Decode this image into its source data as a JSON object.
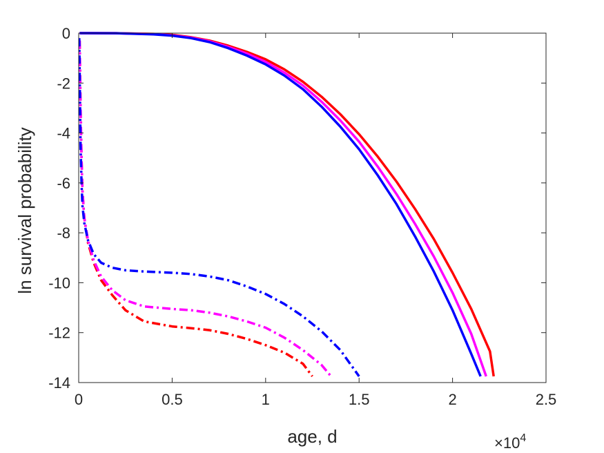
{
  "chart_data": {
    "type": "line",
    "title": "",
    "xlabel": "age, d",
    "ylabel": "ln survival probability",
    "x_exponent_label": {
      "base": "×10",
      "exponent": "4"
    },
    "xlim": [
      0,
      2.5
    ],
    "ylim": [
      -14,
      0
    ],
    "x_scale_factor": 10000,
    "xticks": [
      0,
      0.5,
      1,
      1.5,
      2,
      2.5
    ],
    "xtick_labels": [
      "0",
      "0.5",
      "1",
      "1.5",
      "2",
      "2.5"
    ],
    "yticks": [
      0,
      -2,
      -4,
      -6,
      -8,
      -10,
      -12,
      -14
    ],
    "ytick_labels": [
      "0",
      "-2",
      "-4",
      "-6",
      "-8",
      "-10",
      "-12",
      "-14"
    ],
    "grid": false,
    "legend": "none",
    "series": [
      {
        "color": "#ff0000",
        "style": "solid",
        "points": [
          [
            0.005,
            0
          ],
          [
            0.2,
            -0.002
          ],
          [
            0.4,
            -0.03
          ],
          [
            0.5,
            -0.07
          ],
          [
            0.6,
            -0.16
          ],
          [
            0.7,
            -0.3
          ],
          [
            0.8,
            -0.5
          ],
          [
            0.9,
            -0.75
          ],
          [
            1.0,
            -1.05
          ],
          [
            1.1,
            -1.45
          ],
          [
            1.2,
            -1.95
          ],
          [
            1.3,
            -2.55
          ],
          [
            1.4,
            -3.25
          ],
          [
            1.5,
            -4.05
          ],
          [
            1.6,
            -4.95
          ],
          [
            1.7,
            -5.95
          ],
          [
            1.8,
            -7.05
          ],
          [
            1.9,
            -8.25
          ],
          [
            2.0,
            -9.6
          ],
          [
            2.1,
            -11.05
          ],
          [
            2.2,
            -12.75
          ],
          [
            2.22,
            -13.75
          ]
        ]
      },
      {
        "color": "#ff00ff",
        "style": "solid",
        "points": [
          [
            0.005,
            0
          ],
          [
            0.2,
            -0.003
          ],
          [
            0.4,
            -0.04
          ],
          [
            0.5,
            -0.09
          ],
          [
            0.6,
            -0.18
          ],
          [
            0.7,
            -0.33
          ],
          [
            0.8,
            -0.55
          ],
          [
            0.9,
            -0.82
          ],
          [
            1.0,
            -1.15
          ],
          [
            1.1,
            -1.58
          ],
          [
            1.2,
            -2.1
          ],
          [
            1.3,
            -2.75
          ],
          [
            1.4,
            -3.5
          ],
          [
            1.5,
            -4.35
          ],
          [
            1.6,
            -5.35
          ],
          [
            1.7,
            -6.45
          ],
          [
            1.8,
            -7.65
          ],
          [
            1.9,
            -8.95
          ],
          [
            2.0,
            -10.4
          ],
          [
            2.1,
            -12.05
          ],
          [
            2.18,
            -13.75
          ]
        ]
      },
      {
        "color": "#0000ff",
        "style": "solid",
        "points": [
          [
            0.005,
            0
          ],
          [
            0.2,
            -0.004
          ],
          [
            0.4,
            -0.05
          ],
          [
            0.5,
            -0.1
          ],
          [
            0.6,
            -0.2
          ],
          [
            0.7,
            -0.36
          ],
          [
            0.8,
            -0.6
          ],
          [
            0.9,
            -0.9
          ],
          [
            1.0,
            -1.25
          ],
          [
            1.1,
            -1.7
          ],
          [
            1.2,
            -2.25
          ],
          [
            1.3,
            -2.95
          ],
          [
            1.4,
            -3.75
          ],
          [
            1.5,
            -4.65
          ],
          [
            1.6,
            -5.7
          ],
          [
            1.7,
            -6.85
          ],
          [
            1.8,
            -8.15
          ],
          [
            1.9,
            -9.55
          ],
          [
            2.0,
            -11.1
          ],
          [
            2.1,
            -12.85
          ],
          [
            2.15,
            -13.75
          ]
        ]
      },
      {
        "color": "#ff0000",
        "style": "dashdot",
        "points": [
          [
            0.005,
            -0.3
          ],
          [
            0.01,
            -3
          ],
          [
            0.015,
            -5
          ],
          [
            0.02,
            -6.3
          ],
          [
            0.03,
            -7.4
          ],
          [
            0.05,
            -8.4
          ],
          [
            0.08,
            -9.2
          ],
          [
            0.12,
            -9.9
          ],
          [
            0.18,
            -10.5
          ],
          [
            0.25,
            -11.1
          ],
          [
            0.35,
            -11.55
          ],
          [
            0.5,
            -11.75
          ],
          [
            0.6,
            -11.82
          ],
          [
            0.7,
            -11.9
          ],
          [
            0.8,
            -12.05
          ],
          [
            0.9,
            -12.25
          ],
          [
            1.0,
            -12.5
          ],
          [
            1.1,
            -12.8
          ],
          [
            1.2,
            -13.25
          ],
          [
            1.25,
            -13.75
          ]
        ]
      },
      {
        "color": "#ff00ff",
        "style": "dashdot",
        "points": [
          [
            0.005,
            -0.3
          ],
          [
            0.01,
            -3
          ],
          [
            0.015,
            -5
          ],
          [
            0.02,
            -6.3
          ],
          [
            0.03,
            -7.4
          ],
          [
            0.05,
            -8.3
          ],
          [
            0.08,
            -9.1
          ],
          [
            0.12,
            -9.75
          ],
          [
            0.18,
            -10.3
          ],
          [
            0.25,
            -10.7
          ],
          [
            0.35,
            -10.95
          ],
          [
            0.5,
            -11.05
          ],
          [
            0.6,
            -11.1
          ],
          [
            0.7,
            -11.2
          ],
          [
            0.8,
            -11.35
          ],
          [
            0.9,
            -11.55
          ],
          [
            1.0,
            -11.8
          ],
          [
            1.1,
            -12.2
          ],
          [
            1.2,
            -12.7
          ],
          [
            1.3,
            -13.3
          ],
          [
            1.35,
            -13.75
          ]
        ]
      },
      {
        "color": "#0000ff",
        "style": "dashdot",
        "points": [
          [
            0.003,
            -0.2
          ],
          [
            0.006,
            -2
          ],
          [
            0.01,
            -4.5
          ],
          [
            0.015,
            -6
          ],
          [
            0.02,
            -6.9
          ],
          [
            0.03,
            -7.6
          ],
          [
            0.05,
            -8.3
          ],
          [
            0.08,
            -8.85
          ],
          [
            0.12,
            -9.2
          ],
          [
            0.18,
            -9.4
          ],
          [
            0.25,
            -9.5
          ],
          [
            0.35,
            -9.55
          ],
          [
            0.5,
            -9.6
          ],
          [
            0.6,
            -9.65
          ],
          [
            0.7,
            -9.75
          ],
          [
            0.8,
            -9.9
          ],
          [
            0.9,
            -10.15
          ],
          [
            1.0,
            -10.45
          ],
          [
            1.1,
            -10.85
          ],
          [
            1.2,
            -11.35
          ],
          [
            1.3,
            -11.95
          ],
          [
            1.4,
            -12.7
          ],
          [
            1.5,
            -13.75
          ]
        ]
      }
    ]
  }
}
